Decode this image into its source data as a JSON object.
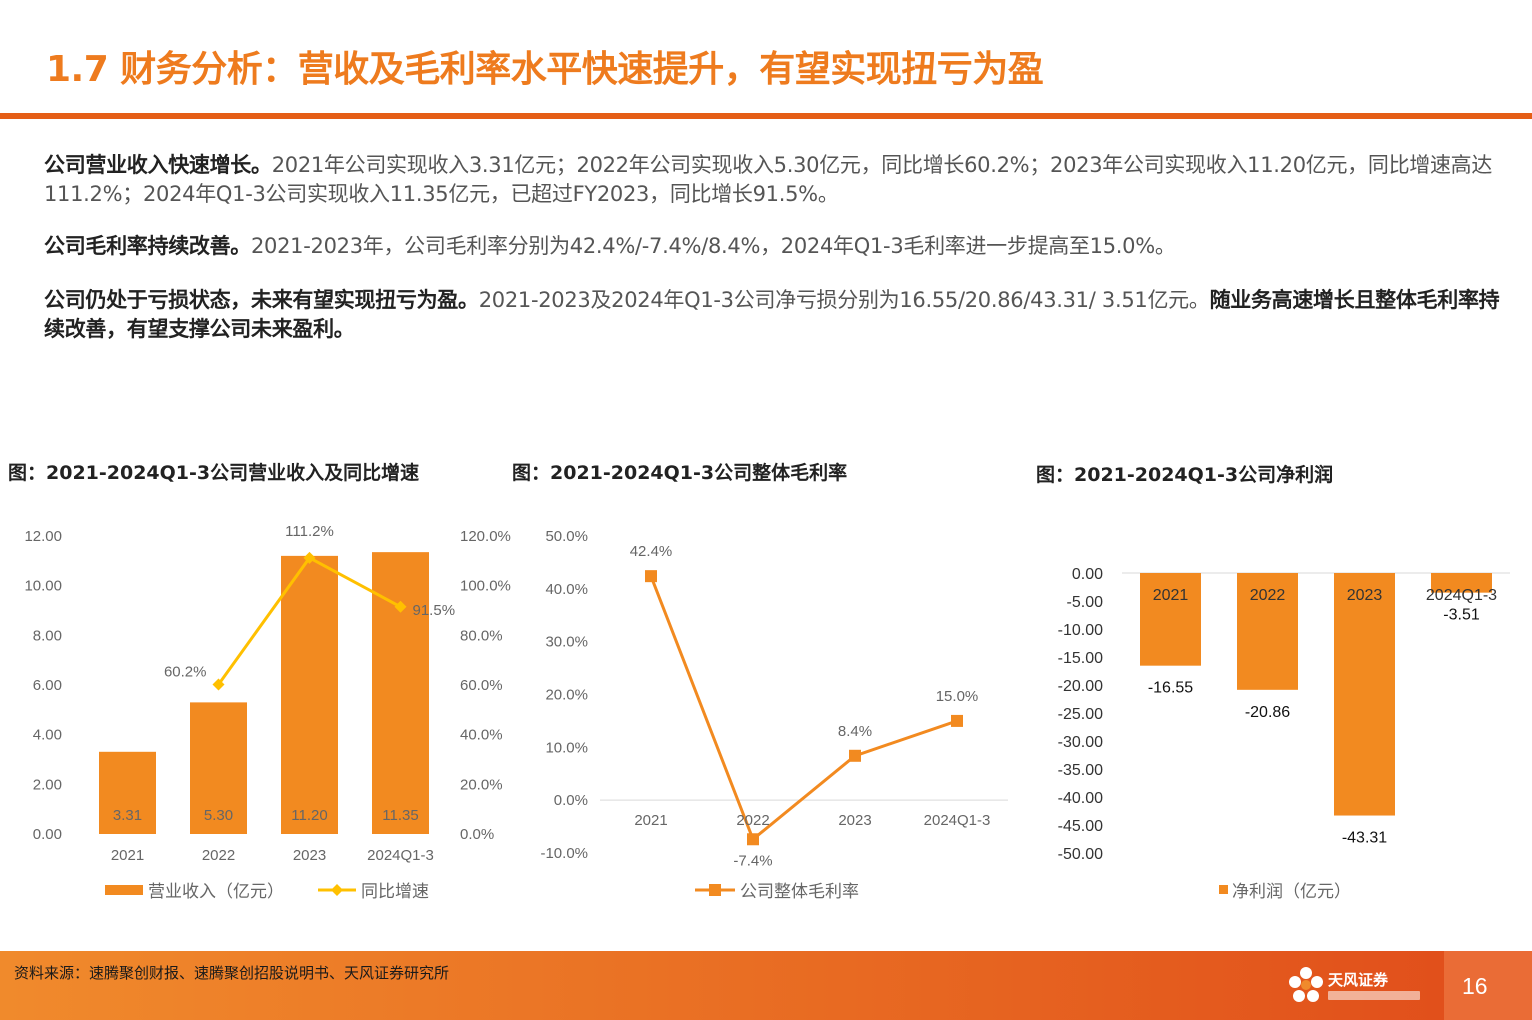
{
  "header": {
    "title": "1.7 财务分析：营收及毛利率水平快速提升，有望实现扭亏为盈"
  },
  "paragraphs": [
    {
      "bold": "公司营业收入快速增长。",
      "text": "2021年公司实现收入3.31亿元；2022年公司实现收入5.30亿元，同比增长60.2%；2023年公司实现收入11.20亿元，同比增速高达111.2%；2024年Q1-3公司实现收入11.35亿元，已超过FY2023，同比增长91.5%。",
      "bold_tail": ""
    },
    {
      "bold": "公司毛利率持续改善。",
      "text": "2021-2023年，公司毛利率分别为42.4%/-7.4%/8.4%，2024年Q1-3毛利率进一步提高至15.0%。",
      "bold_tail": ""
    },
    {
      "bold": "公司仍处于亏损状态，未来有望实现扭亏为盈。",
      "text": "2021-2023及2024年Q1-3公司净亏损分别为16.55/20.86/43.31/  3.51亿元。",
      "bold_tail": "随业务高速增长且整体毛利率持续改善，有望支撑公司未来盈利。"
    }
  ],
  "captions": {
    "chart1": "图：2021-2024Q1-3公司营业收入及同比增速",
    "chart2": "图：2021-2024Q1-3公司整体毛利率",
    "chart3": "图：2021-2024Q1-3公司净利润"
  },
  "chart_data": [
    {
      "type": "bar",
      "categories": [
        "2021",
        "2022",
        "2023",
        "2024Q1-3"
      ],
      "series": [
        {
          "name": "营业收入（亿元）",
          "type": "bar",
          "axis": "left",
          "values": [
            3.31,
            5.3,
            11.2,
            11.35
          ],
          "labels": [
            "3.31",
            "5.30",
            "11.20",
            "11.35"
          ],
          "color": "#f28a20"
        },
        {
          "name": "同比增速",
          "type": "line",
          "axis": "right",
          "values": [
            null,
            60.2,
            111.2,
            91.5
          ],
          "labels": [
            "",
            "60.2%",
            "111.2%",
            "91.5%"
          ],
          "color": "#ffc000"
        }
      ],
      "y_left": {
        "ylim": [
          0,
          12
        ],
        "ticks": [
          "0.00",
          "2.00",
          "4.00",
          "6.00",
          "8.00",
          "10.00",
          "12.00"
        ]
      },
      "y_right": {
        "ylim": [
          0,
          120
        ],
        "ticks": [
          "0.0%",
          "20.0%",
          "40.0%",
          "60.0%",
          "80.0%",
          "100.0%",
          "120.0%"
        ]
      },
      "legend": "bottom",
      "grid": false
    },
    {
      "type": "line",
      "categories": [
        "2021",
        "2022",
        "2023",
        "2024Q1-3"
      ],
      "series": [
        {
          "name": "公司整体毛利率",
          "values": [
            42.4,
            -7.4,
            8.4,
            15.0
          ],
          "labels": [
            "42.4%",
            "-7.4%",
            "8.4%",
            "15.0%"
          ],
          "color": "#f28a20"
        }
      ],
      "ylim": [
        -10,
        50
      ],
      "ticks": [
        "-10.0%",
        "0.0%",
        "10.0%",
        "20.0%",
        "30.0%",
        "40.0%",
        "50.0%"
      ],
      "legend": "bottom",
      "grid": false
    },
    {
      "type": "bar",
      "categories": [
        "2021",
        "2022",
        "2023",
        "2024Q1-3"
      ],
      "series": [
        {
          "name": "净利润（亿元）",
          "values": [
            -16.55,
            -20.86,
            -43.31,
            -3.51
          ],
          "labels": [
            "-16.55",
            "-20.86",
            "-43.31",
            "-3.51"
          ],
          "color": "#f28a20"
        }
      ],
      "ylim": [
        -50,
        0
      ],
      "ticks": [
        "0.00",
        "-5.00",
        "-10.00",
        "-15.00",
        "-20.00",
        "-25.00",
        "-30.00",
        "-35.00",
        "-40.00",
        "-45.00",
        "-50.00"
      ],
      "legend": "bottom",
      "grid": false
    }
  ],
  "footer": {
    "source": "资料来源：速腾聚创财报、速腾聚创招股说明书、天风证券研究所",
    "logo_text": "天风证券",
    "page_number": "16"
  },
  "colors": {
    "accent": "#ee7b1e",
    "rule": "#e55e16",
    "bar": "#f28a20",
    "growth_line": "#ffc000"
  }
}
